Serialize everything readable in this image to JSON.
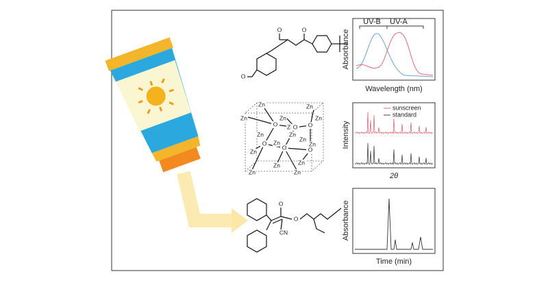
{
  "spectrum_panel": {
    "bands": [
      "UV-B",
      "UV-A"
    ],
    "y_label": "Absorbance",
    "x_label": "Wavelength (nm)"
  },
  "xrd_panel": {
    "y_label": "Intensity",
    "x_label": "2θ",
    "legend": [
      "sunscreen",
      "standard"
    ]
  },
  "chromatogram_panel": {
    "y_label": "Absorbance",
    "x_label": "Time (min)"
  },
  "avobenzone": {
    "atoms": [
      "O",
      "O",
      "O"
    ]
  },
  "zno_cluster": {
    "atoms": [
      "Zn",
      "Zn",
      "Zn",
      "Zn",
      "Zn",
      "Zn",
      "Zn",
      "Zn",
      "Zn",
      "Zn",
      "Zn",
      "Zn",
      "Zn",
      "Zn",
      "Zn",
      "Zn",
      "O",
      "O",
      "O",
      "O",
      "O",
      "O"
    ]
  },
  "octocrylene": {
    "atoms": [
      "O",
      "O",
      "CN"
    ]
  }
}
